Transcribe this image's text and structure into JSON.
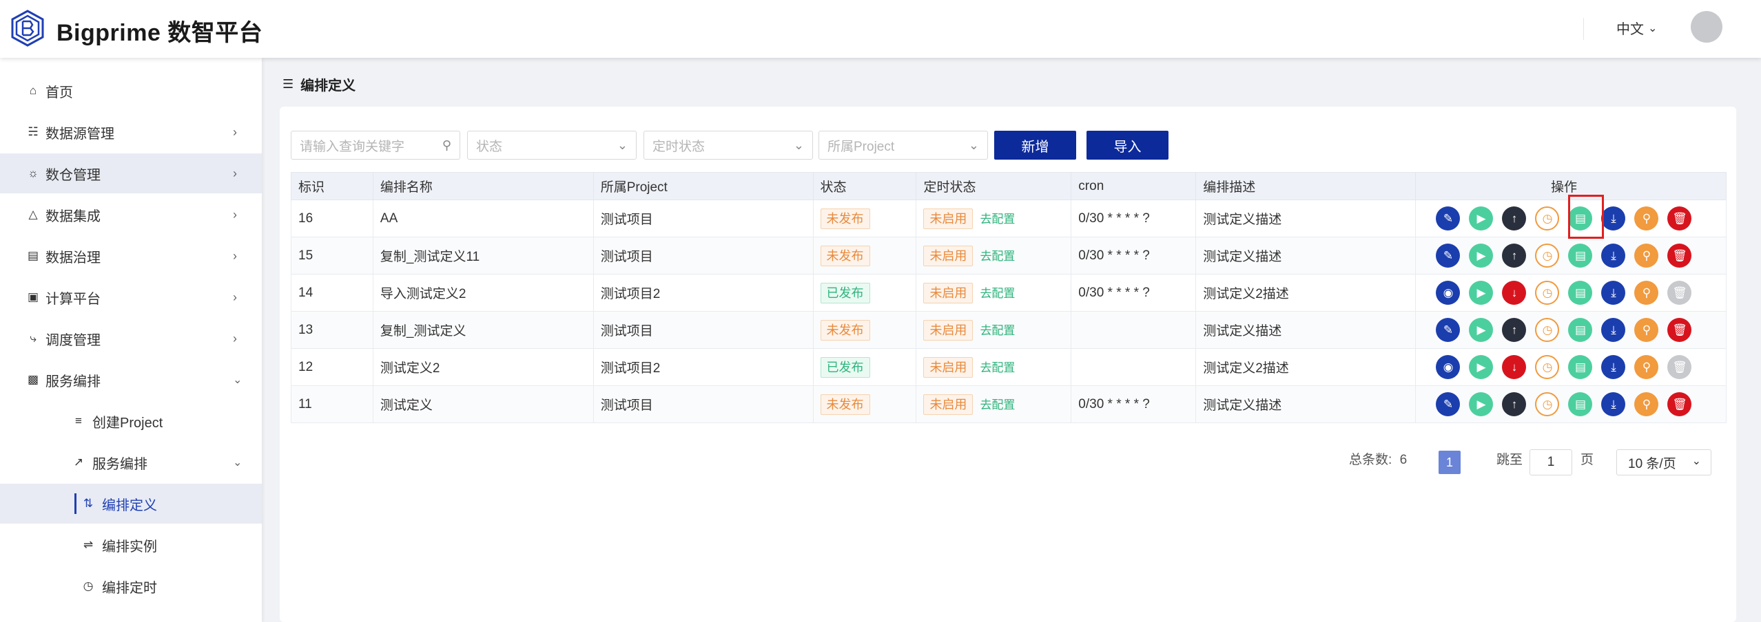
{
  "header": {
    "brand": "Bigprime 数智平台",
    "lang": "中文"
  },
  "sidebar": {
    "items": [
      {
        "label": "首页",
        "icon": "home-icon"
      },
      {
        "label": "数据源管理",
        "icon": "datasource-icon"
      },
      {
        "label": "数仓管理",
        "icon": "warehouse-icon"
      },
      {
        "label": "数据集成",
        "icon": "integration-icon"
      },
      {
        "label": "数据治理",
        "icon": "governance-icon"
      },
      {
        "label": "计算平台",
        "icon": "compute-icon"
      },
      {
        "label": "调度管理",
        "icon": "schedule-icon"
      },
      {
        "label": "服务编排",
        "icon": "chart-bar-icon"
      }
    ],
    "sub": {
      "create_project": "创建Project",
      "service_orch": "服务编排"
    },
    "subsub": [
      "编排定义",
      "编排实例",
      "编排定时"
    ]
  },
  "breadcrumb": {
    "title": "编排定义"
  },
  "filters": {
    "keyword_placeholder": "请输入查询关键字",
    "status_placeholder": "状态",
    "timer_placeholder": "定时状态",
    "project_placeholder": "所属Project",
    "add_label": "新增",
    "import_label": "导入"
  },
  "table": {
    "headers": [
      "标识",
      "编排名称",
      "所属Project",
      "状态",
      "定时状态",
      "cron",
      "编排描述",
      "操作"
    ],
    "config_label": "去配置",
    "rows": [
      {
        "id": "16",
        "name": "AA",
        "project": "测试项目",
        "status": "未发布",
        "published": false,
        "timer": "未启用",
        "cron": "0/30 * * * * ?",
        "desc": "测试定义描述"
      },
      {
        "id": "15",
        "name": "复制_测试定义11",
        "project": "测试项目",
        "status": "未发布",
        "published": false,
        "timer": "未启用",
        "cron": "0/30 * * * * ?",
        "desc": "测试定义描述"
      },
      {
        "id": "14",
        "name": "导入测试定义2",
        "project": "测试项目2",
        "status": "已发布",
        "published": true,
        "timer": "未启用",
        "cron": "0/30 * * * * ?",
        "desc": "测试定义2描述"
      },
      {
        "id": "13",
        "name": "复制_测试定义",
        "project": "测试项目",
        "status": "未发布",
        "published": false,
        "timer": "未启用",
        "cron": "",
        "desc": "测试定义描述"
      },
      {
        "id": "12",
        "name": "测试定义2",
        "project": "测试项目2",
        "status": "已发布",
        "published": true,
        "timer": "未启用",
        "cron": "",
        "desc": "测试定义2描述"
      },
      {
        "id": "11",
        "name": "测试定义",
        "project": "测试项目",
        "status": "未发布",
        "published": false,
        "timer": "未启用",
        "cron": "0/30 * * * * ?",
        "desc": "测试定义描述"
      }
    ]
  },
  "pagination": {
    "total_label": "总条数:",
    "total": "6",
    "current": "1",
    "jump_label": "跳至",
    "jump_value": "1",
    "page_unit": "页",
    "page_size": "10 条/页"
  },
  "colors": {
    "primary": "#0d2a9b",
    "green": "#4ccf9e",
    "red": "#d7141e",
    "orange": "#f19a3e"
  }
}
